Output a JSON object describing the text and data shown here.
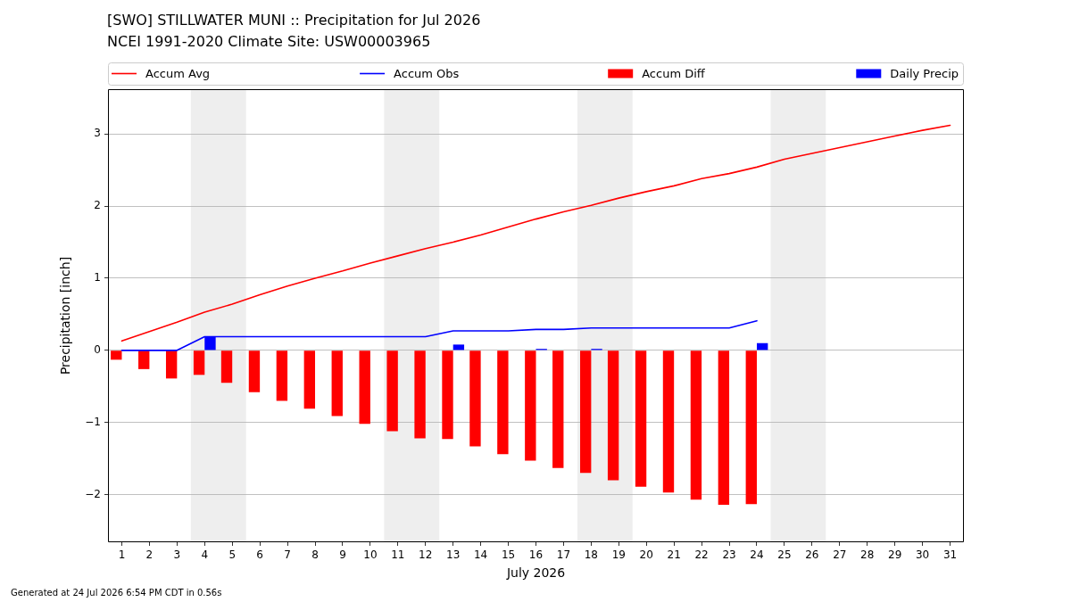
{
  "chart_data": {
    "type": "bar",
    "title": "[SWO] STILLWATER MUNI :: Precipitation for Jul 2026",
    "subtitle": "NCEI 1991-2020 Climate Site: USW00003965",
    "xlabel": "July 2026",
    "ylabel": "Precipitation [inch]",
    "x": [
      1,
      2,
      3,
      4,
      5,
      6,
      7,
      8,
      9,
      10,
      11,
      12,
      13,
      14,
      15,
      16,
      17,
      18,
      19,
      20,
      21,
      22,
      23,
      24,
      25,
      26,
      27,
      28,
      29,
      30,
      31
    ],
    "series": [
      {
        "name": "Accum Avg",
        "type": "line",
        "color": "#ff0000",
        "values": [
          0.13,
          0.26,
          0.39,
          0.53,
          0.64,
          0.77,
          0.89,
          1.0,
          1.1,
          1.21,
          1.31,
          1.41,
          1.5,
          1.6,
          1.71,
          1.82,
          1.92,
          2.01,
          2.11,
          2.2,
          2.28,
          2.38,
          2.45,
          2.54,
          2.65,
          2.73,
          2.81,
          2.89,
          2.97,
          3.05,
          3.12
        ]
      },
      {
        "name": "Accum Obs",
        "type": "line",
        "color": "#0000ff",
        "values": [
          0,
          0,
          0,
          0.19,
          0.19,
          0.19,
          0.19,
          0.19,
          0.19,
          0.19,
          0.19,
          0.19,
          0.27,
          0.27,
          0.27,
          0.29,
          0.29,
          0.31,
          0.31,
          0.31,
          0.31,
          0.31,
          0.31,
          0.41,
          null,
          null,
          null,
          null,
          null,
          null,
          null
        ]
      },
      {
        "name": "Accum Diff",
        "color": "#ff0000",
        "values": [
          -0.13,
          -0.26,
          -0.39,
          -0.34,
          -0.45,
          -0.58,
          -0.7,
          -0.81,
          -0.91,
          -1.02,
          -1.12,
          -1.22,
          -1.23,
          -1.33,
          -1.44,
          -1.53,
          -1.63,
          -1.7,
          -1.8,
          -1.89,
          -1.97,
          -2.07,
          -2.14,
          -2.13,
          null,
          null,
          null,
          null,
          null,
          null,
          null
        ]
      },
      {
        "name": "Daily Precip",
        "color": "#0000ff",
        "values": [
          0,
          0,
          0,
          0.19,
          0,
          0,
          0,
          0,
          0,
          0,
          0,
          0,
          0.08,
          0,
          0,
          0.02,
          0,
          0.02,
          0,
          0,
          0,
          0,
          0,
          0.1,
          null,
          null,
          null,
          null,
          null,
          null,
          null
        ]
      }
    ],
    "xlim": [
      0.5,
      31.5
    ],
    "xticks": [
      1,
      2,
      3,
      4,
      5,
      6,
      7,
      8,
      9,
      10,
      11,
      12,
      13,
      14,
      15,
      16,
      17,
      18,
      19,
      20,
      21,
      22,
      23,
      24,
      25,
      26,
      27,
      28,
      29,
      30,
      31
    ],
    "ylim": [
      -2.66,
      3.62
    ],
    "yticks": [
      {
        "value": -2,
        "label": "−2"
      },
      {
        "value": -1,
        "label": "−1"
      },
      0,
      1,
      2,
      3
    ],
    "bands": [
      {
        "axis": "x",
        "from": 3.5,
        "to": 5.5,
        "color": "#eeeeee"
      },
      {
        "axis": "x",
        "from": 10.5,
        "to": 12.5,
        "color": "#eeeeee"
      },
      {
        "axis": "x",
        "from": 17.5,
        "to": 19.5,
        "color": "#eeeeee"
      },
      {
        "axis": "x",
        "from": 24.5,
        "to": 26.5,
        "color": "#eeeeee"
      }
    ],
    "grid": "y",
    "legend": "top",
    "annotations": [
      "Generated at 24 Jul 2026 6:54 PM CDT in 0.56s"
    ]
  }
}
